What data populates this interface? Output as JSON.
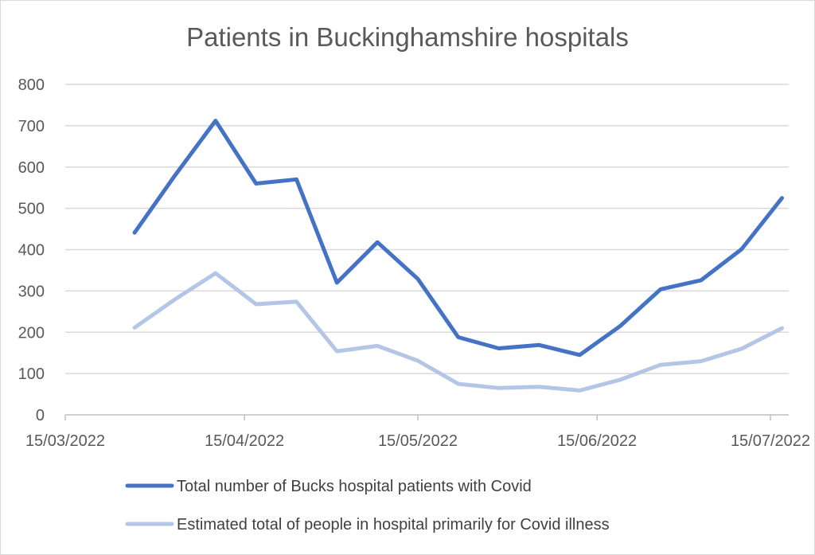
{
  "chart_data": {
    "type": "line",
    "title": "Patients in Buckinghamshire hospitals",
    "xlabel": "",
    "ylabel": "",
    "ylim": [
      0,
      800
    ],
    "yticks": [
      0,
      100,
      200,
      300,
      400,
      500,
      600,
      700,
      800
    ],
    "xlim": [
      "2022-03-15",
      "2022-07-15"
    ],
    "xtick_values": [
      "2022-03-15",
      "2022-04-15",
      "2022-05-15",
      "2022-06-15",
      "2022-07-15"
    ],
    "xtick_labels": [
      "15/03/2022",
      "15/04/2022",
      "15/05/2022",
      "15/06/2022",
      "15/07/2022"
    ],
    "grid": "horizontal",
    "legend_position": "bottom",
    "x": [
      "2022-03-27",
      "2022-04-03",
      "2022-04-10",
      "2022-04-17",
      "2022-04-24",
      "2022-05-01",
      "2022-05-08",
      "2022-05-15",
      "2022-05-22",
      "2022-05-29",
      "2022-06-05",
      "2022-06-12",
      "2022-06-19",
      "2022-06-26",
      "2022-07-03",
      "2022-07-10",
      "2022-07-17"
    ],
    "series": [
      {
        "name": "Total number of Bucks hospital patients with Covid",
        "color": "#4472c4",
        "values": [
          441,
          580,
          712,
          560,
          570,
          320,
          418,
          329,
          188,
          161,
          169,
          145,
          215,
          304,
          326,
          401,
          525
        ]
      },
      {
        "name": "Estimated total of people in hospital primarily for Covid illness",
        "color": "#b4c6e7",
        "values": [
          211,
          280,
          343,
          268,
          274,
          154,
          167,
          131,
          75,
          65,
          68,
          59,
          85,
          121,
          130,
          160,
          210
        ]
      }
    ]
  }
}
